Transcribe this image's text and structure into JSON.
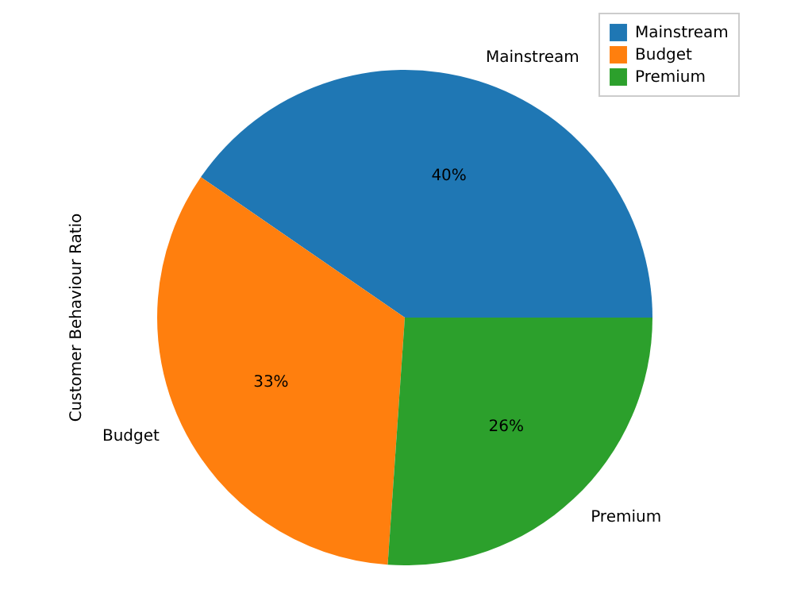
{
  "chart_data": {
    "type": "pie",
    "ylabel": "Customer Behaviour Ratio",
    "categories": [
      "Mainstream",
      "Budget",
      "Premium"
    ],
    "values": [
      40.4,
      33.5,
      26.1
    ],
    "value_labels": [
      "40%",
      "33%",
      "26%"
    ],
    "colors": [
      "#1f77b4",
      "#ff7f0e",
      "#2ca02c"
    ],
    "legend": "top right"
  }
}
